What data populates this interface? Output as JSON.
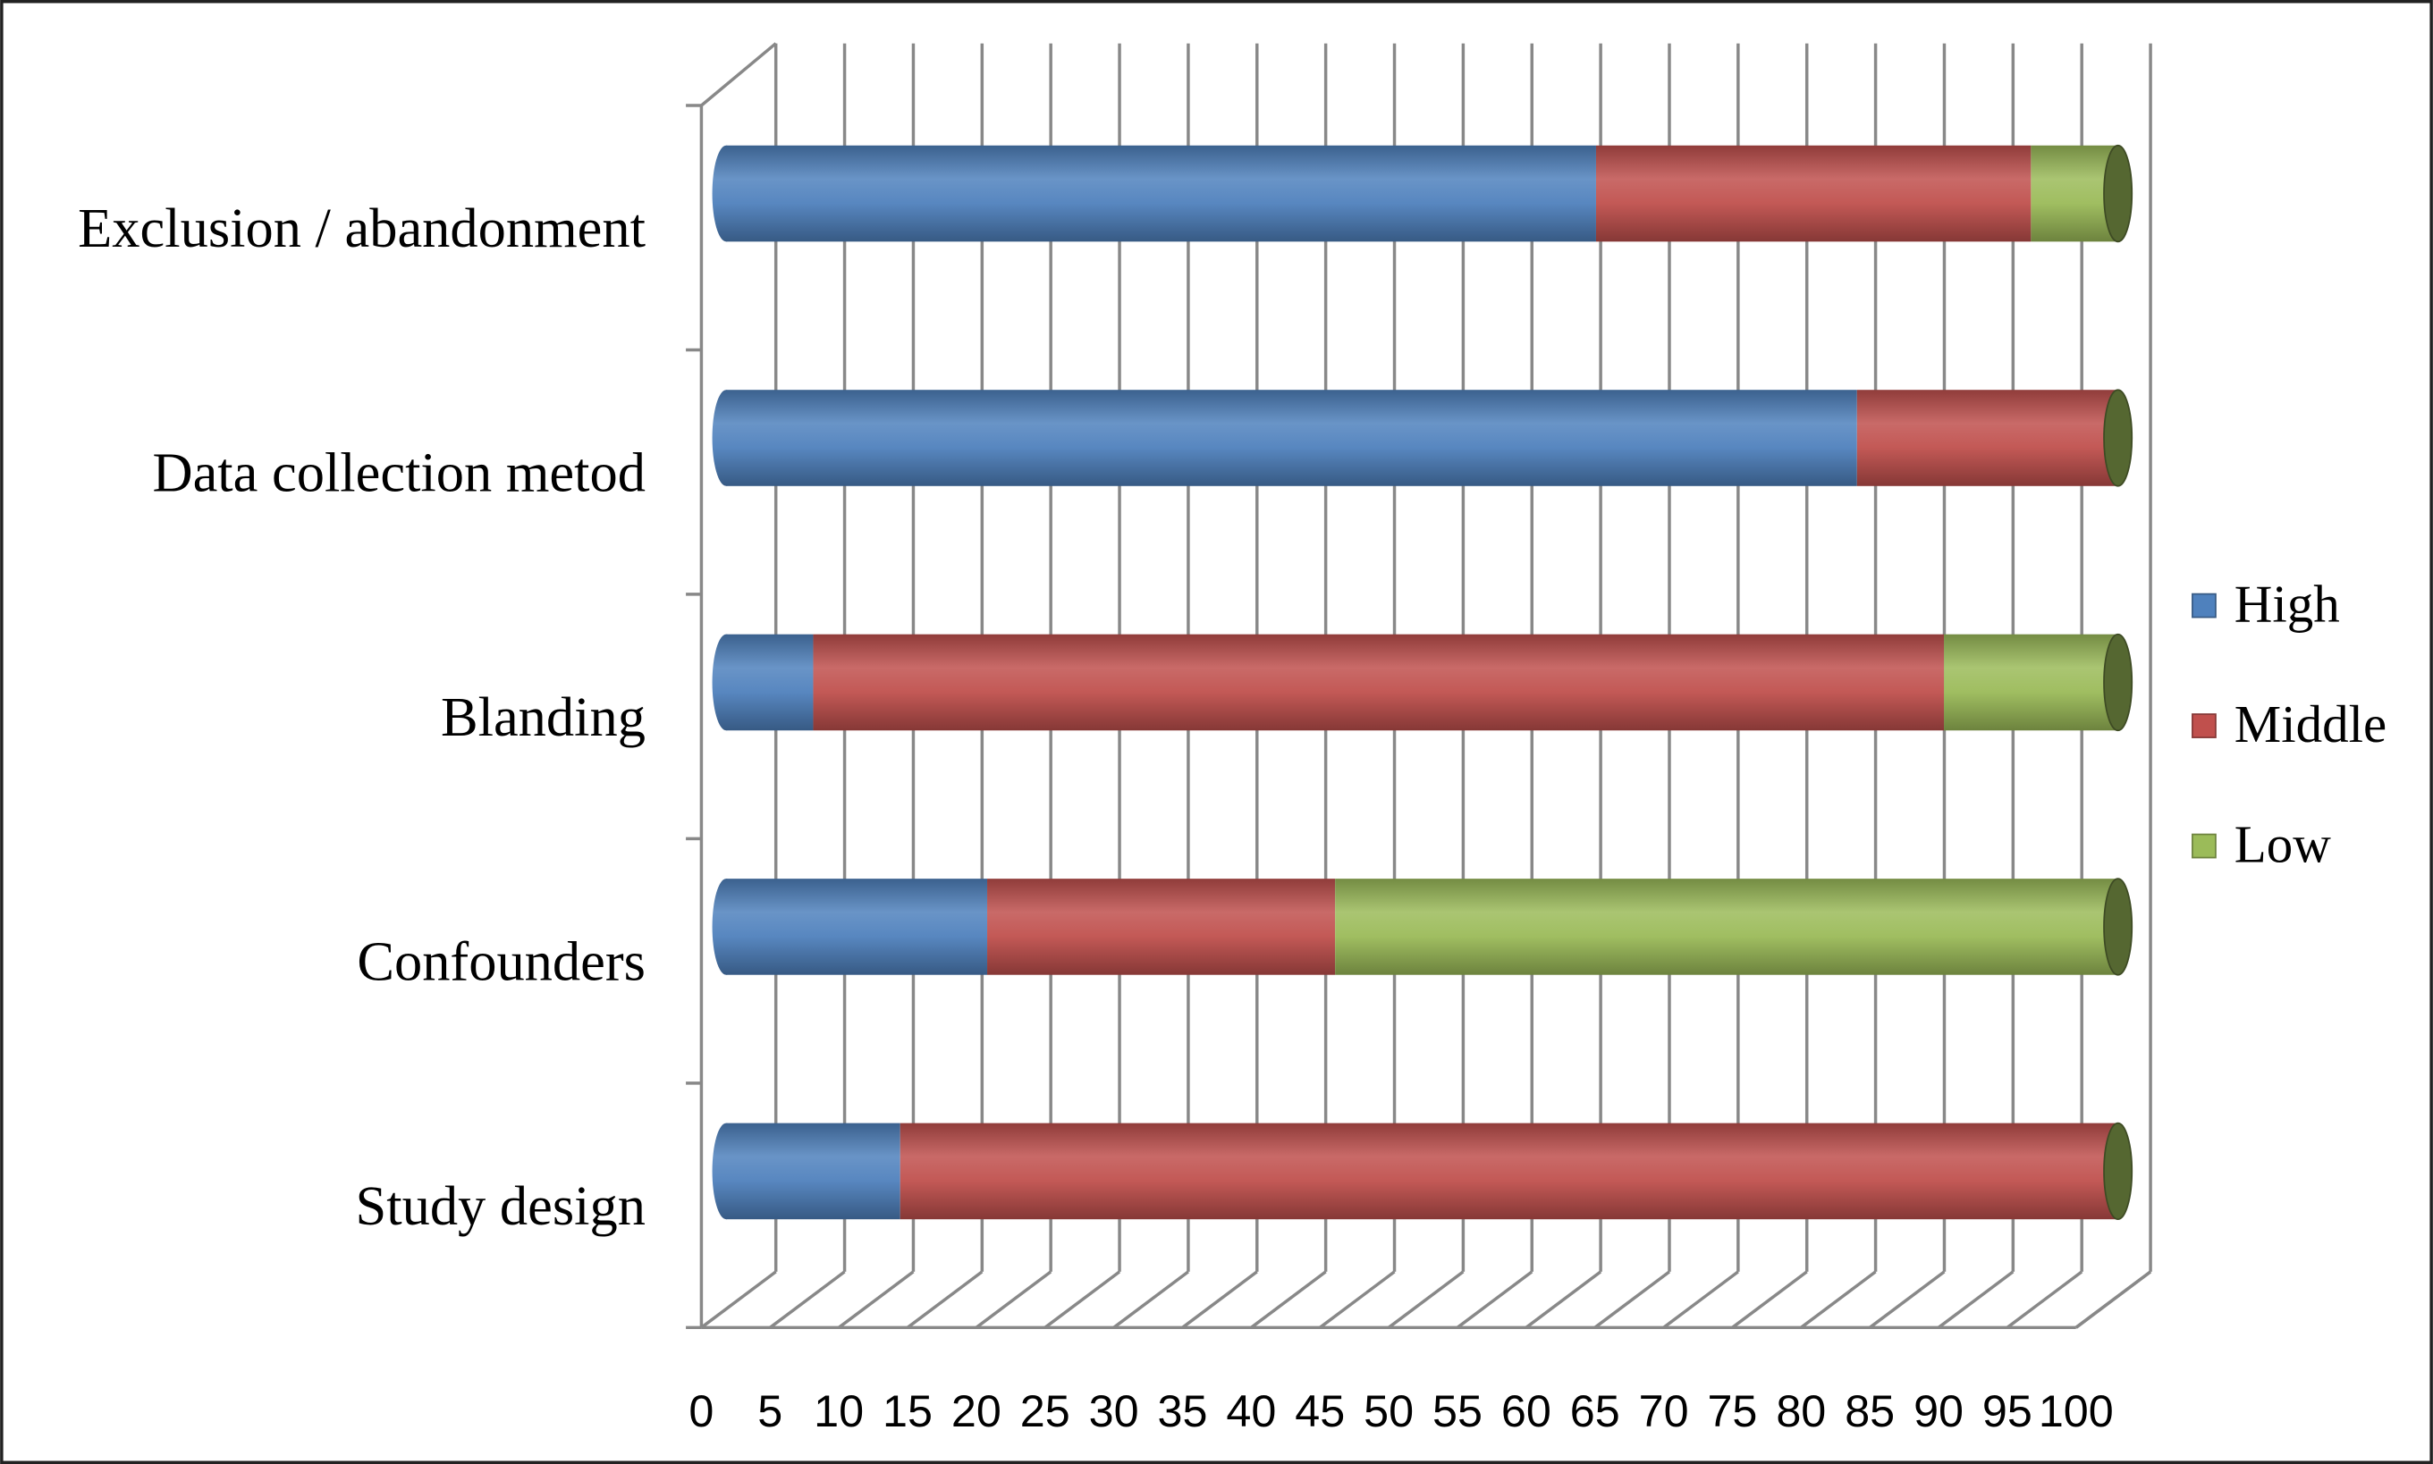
{
  "chart_data": {
    "type": "bar",
    "orientation": "horizontal",
    "stacked": true,
    "categories": [
      "Exclusion / abandonment",
      "Data collection metod",
      "Blanding",
      "Confounders",
      "Study design"
    ],
    "series": [
      {
        "name": "High",
        "color": "#4f81bd",
        "values": [
          62.5,
          81.25,
          6.25,
          18.75,
          12.5
        ]
      },
      {
        "name": "Middle",
        "color": "#c0504d",
        "values": [
          31.25,
          18.75,
          81.25,
          25,
          87.5
        ]
      },
      {
        "name": "Low",
        "color": "#9bbb59",
        "values": [
          6.25,
          0,
          12.5,
          56.25,
          0
        ]
      }
    ],
    "xlim": [
      0,
      100
    ],
    "xticks": [
      0,
      5,
      10,
      15,
      20,
      25,
      30,
      35,
      40,
      45,
      50,
      55,
      60,
      65,
      70,
      75,
      80,
      85,
      90,
      95,
      100
    ],
    "grid": true,
    "legend": "right"
  }
}
